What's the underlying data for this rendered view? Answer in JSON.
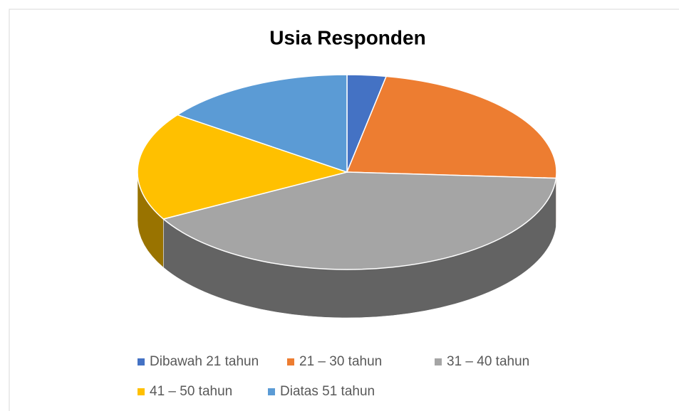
{
  "chart_data": {
    "type": "pie3d",
    "title": "Usia Responden",
    "categories": [
      "Dibawah 21 tahun",
      "21 – 30 tahun",
      "31 – 40 tahun",
      "41 – 50 tahun",
      "Diatas 51 tahun"
    ],
    "values": [
      3,
      23,
      41,
      18,
      15
    ],
    "colors": [
      "#4472c4",
      "#ed7d31",
      "#a5a5a5",
      "#ffc000",
      "#5b9bd5"
    ],
    "legend": "bottom"
  }
}
